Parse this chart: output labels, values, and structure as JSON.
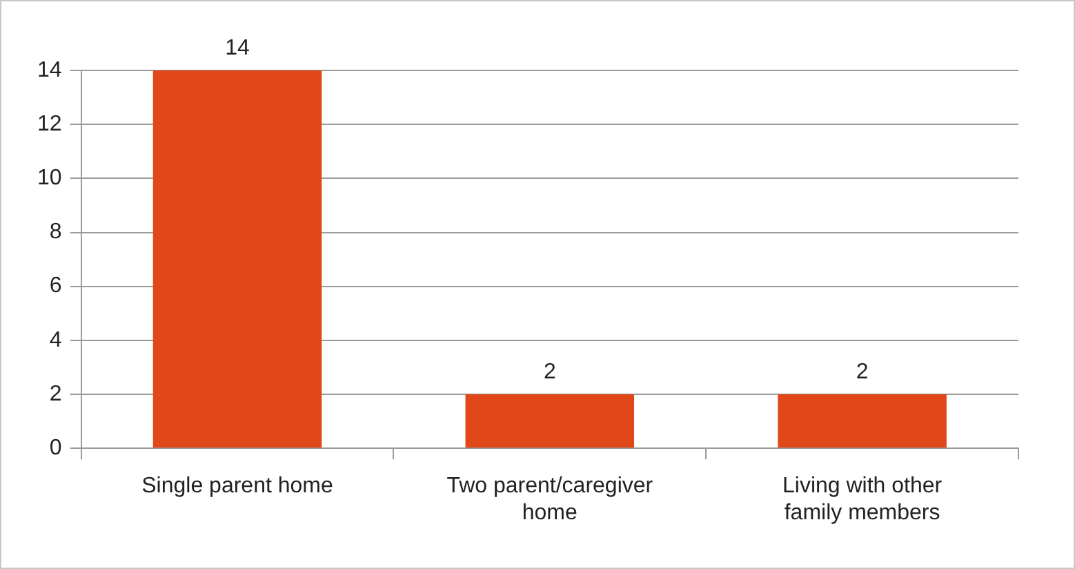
{
  "chart_data": {
    "type": "bar",
    "categories": [
      "Single parent home",
      "Two parent/caregiver home",
      "Living with other family members"
    ],
    "values": [
      14,
      2,
      2
    ],
    "color": "#e0481a",
    "ylim": [
      0,
      14
    ],
    "yticks": [
      0,
      2,
      4,
      6,
      8,
      10,
      12,
      14
    ],
    "grid": "y",
    "data_labels": true
  }
}
